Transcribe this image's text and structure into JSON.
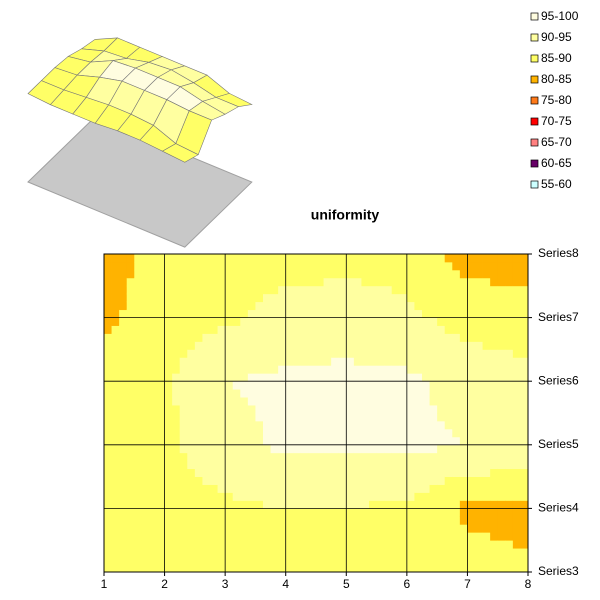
{
  "chart_data": {
    "type": "contour",
    "title": "uniformity",
    "x": [
      1,
      2,
      3,
      4,
      5,
      6,
      7,
      8
    ],
    "xlim": [
      1,
      8
    ],
    "xticks": [
      1,
      2,
      3,
      4,
      5,
      6,
      7,
      8
    ],
    "series": [
      {
        "name": "Series3",
        "values": [
          88,
          87,
          87,
          87,
          88,
          88,
          87,
          86
        ]
      },
      {
        "name": "Series4",
        "values": [
          88,
          88,
          89,
          90,
          90,
          89,
          84,
          83
        ]
      },
      {
        "name": "Series5",
        "values": [
          88,
          89,
          93,
          96,
          96,
          96,
          95,
          95
        ]
      },
      {
        "name": "Series6",
        "values": [
          87,
          89,
          95,
          96,
          96,
          96,
          93,
          91
        ]
      },
      {
        "name": "Series7",
        "values": [
          84,
          88,
          89,
          92,
          93,
          91,
          88,
          88
        ]
      },
      {
        "name": "Series8",
        "values": [
          82,
          88,
          88,
          88,
          88,
          88,
          83,
          82
        ]
      }
    ],
    "bands": [
      {
        "label": "95-100",
        "min": 95,
        "max": 100,
        "color": "#fffde0"
      },
      {
        "label": "90-95",
        "min": 90,
        "max": 95,
        "color": "#ffffa0"
      },
      {
        "label": "85-90",
        "min": 85,
        "max": 90,
        "color": "#ffff66"
      },
      {
        "label": "80-85",
        "min": 80,
        "max": 85,
        "color": "#ffb300"
      },
      {
        "label": "75-80",
        "min": 75,
        "max": 80,
        "color": "#ff7a1a"
      },
      {
        "label": "70-75",
        "min": 70,
        "max": 75,
        "color": "#ff0000"
      },
      {
        "label": "65-70",
        "min": 65,
        "max": 70,
        "color": "#ff8080"
      },
      {
        "label": "60-65",
        "min": 60,
        "max": 65,
        "color": "#660066"
      },
      {
        "label": "55-60",
        "min": 55,
        "max": 60,
        "color": "#ccffff"
      }
    ],
    "grid": true,
    "legend": "top-right"
  }
}
